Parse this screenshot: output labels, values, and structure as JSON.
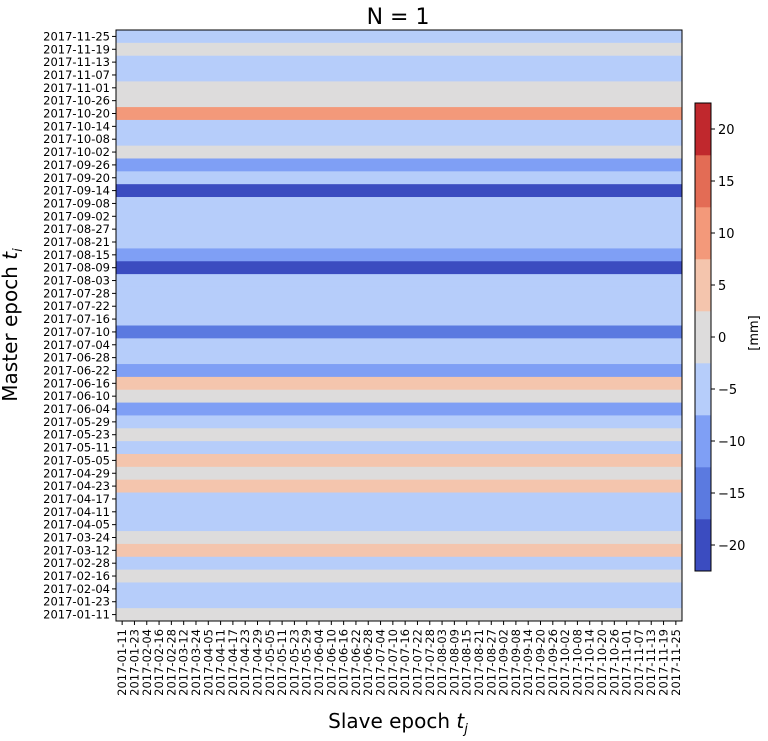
{
  "chart_data": {
    "type": "heatmap",
    "title": "N = 1",
    "xlabel": "Slave epoch",
    "xlabel_sub": "j",
    "ylabel": "Master epoch",
    "ylabel_sub": "i",
    "x": [
      "2017-01-11",
      "2017-01-23",
      "2017-02-04",
      "2017-02-16",
      "2017-02-28",
      "2017-03-12",
      "2017-03-24",
      "2017-04-05",
      "2017-04-11",
      "2017-04-17",
      "2017-04-23",
      "2017-04-29",
      "2017-05-05",
      "2017-05-11",
      "2017-05-23",
      "2017-05-29",
      "2017-06-04",
      "2017-06-10",
      "2017-06-16",
      "2017-06-22",
      "2017-06-28",
      "2017-07-04",
      "2017-07-10",
      "2017-07-16",
      "2017-07-22",
      "2017-07-28",
      "2017-08-03",
      "2017-08-09",
      "2017-08-15",
      "2017-08-21",
      "2017-08-27",
      "2017-09-02",
      "2017-09-08",
      "2017-09-14",
      "2017-09-20",
      "2017-09-26",
      "2017-10-02",
      "2017-10-08",
      "2017-10-14",
      "2017-10-20",
      "2017-10-26",
      "2017-11-01",
      "2017-11-07",
      "2017-11-13",
      "2017-11-19",
      "2017-11-25"
    ],
    "y": [
      "2017-11-25",
      "2017-11-19",
      "2017-11-13",
      "2017-11-07",
      "2017-11-01",
      "2017-10-26",
      "2017-10-20",
      "2017-10-14",
      "2017-10-08",
      "2017-10-02",
      "2017-09-26",
      "2017-09-20",
      "2017-09-14",
      "2017-09-08",
      "2017-09-02",
      "2017-08-27",
      "2017-08-21",
      "2017-08-15",
      "2017-08-09",
      "2017-08-03",
      "2017-07-28",
      "2017-07-22",
      "2017-07-16",
      "2017-07-10",
      "2017-07-04",
      "2017-06-28",
      "2017-06-22",
      "2017-06-16",
      "2017-06-10",
      "2017-06-04",
      "2017-05-29",
      "2017-05-23",
      "2017-05-11",
      "2017-05-05",
      "2017-04-29",
      "2017-04-23",
      "2017-04-17",
      "2017-04-11",
      "2017-04-05",
      "2017-03-24",
      "2017-03-12",
      "2017-02-28",
      "2017-02-16",
      "2017-02-04",
      "2017-01-23",
      "2017-01-11"
    ],
    "row_values": [
      -5,
      0,
      -5,
      -5,
      0,
      0,
      12,
      -5,
      -5,
      0,
      -10,
      -5,
      -20,
      -5,
      -5,
      -5,
      -5,
      -10,
      -20,
      -5,
      -5,
      -5,
      -5,
      -15,
      -5,
      -5,
      -10,
      5,
      0,
      -10,
      -5,
      0,
      -5,
      5,
      0,
      5,
      -5,
      -5,
      -5,
      0,
      5,
      -5,
      0,
      -5,
      -5,
      0
    ],
    "colorbar": {
      "label": "[mm]",
      "range": [
        -22.5,
        22.5
      ],
      "ticks": [
        -20,
        -15,
        -10,
        -5,
        0,
        5,
        10,
        15,
        20
      ],
      "bins": [
        {
          "from": -22.5,
          "to": -17.5,
          "color": "#3b4cc0"
        },
        {
          "from": -17.5,
          "to": -12.5,
          "color": "#5b7ae0"
        },
        {
          "from": -12.5,
          "to": -7.5,
          "color": "#7f9ff5"
        },
        {
          "from": -7.5,
          "to": -2.5,
          "color": "#b6cdfa"
        },
        {
          "from": -2.5,
          "to": 2.5,
          "color": "#dddcdc"
        },
        {
          "from": 2.5,
          "to": 7.5,
          "color": "#f4c5ad"
        },
        {
          "from": 7.5,
          "to": 12.5,
          "color": "#f3997a"
        },
        {
          "from": 12.5,
          "to": 17.5,
          "color": "#e36c55"
        },
        {
          "from": 17.5,
          "to": 22.5,
          "color": "#c0282d"
        },
        {
          "from": 22.5,
          "to": 27.5,
          "color": "#b40426"
        }
      ]
    },
    "grid": false
  }
}
